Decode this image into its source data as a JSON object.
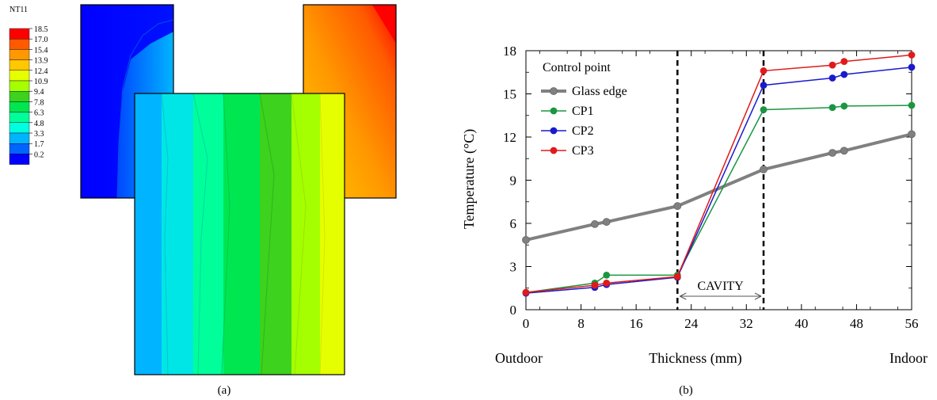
{
  "panel_a": {
    "caption": "(a)",
    "legend": {
      "title": "NT11",
      "levels": [
        "18.5",
        "17.0",
        "15.4",
        "13.9",
        "12.4",
        "10.9",
        "9.4",
        "7.8",
        "6.3",
        "4.8",
        "3.3",
        "1.7",
        "0.2"
      ],
      "colors": [
        "#ff0000",
        "#ff5a00",
        "#ff9900",
        "#ffc800",
        "#e6ff00",
        "#a5ff00",
        "#3cd21e",
        "#00e650",
        "#00ff9b",
        "#00ffe1",
        "#00b4ff",
        "#0064ff",
        "#0000ff"
      ]
    }
  },
  "panel_b": {
    "caption": "(b)"
  },
  "chart_data": {
    "type": "line",
    "xlabel": "Thickness (mm)",
    "ylabel": "Temperature (°C)",
    "xlim": [
      0,
      56
    ],
    "ylim": [
      0,
      18
    ],
    "xticks": [
      0,
      8,
      16,
      24,
      32,
      40,
      48,
      56
    ],
    "yticks": [
      0,
      3,
      6,
      9,
      12,
      15,
      18
    ],
    "x_end_labels": {
      "left": "Outdoor",
      "right": "Indoor"
    },
    "legend_title": "Control point",
    "legend_position": "top-left",
    "cavity": {
      "label": "CAVITY",
      "x_start": 22,
      "x_end": 34.5
    },
    "series": [
      {
        "name": "Glass edge",
        "color": "#808080",
        "x": [
          0,
          10,
          11.7,
          22,
          34.5,
          44.5,
          46.2,
          56
        ],
        "y": [
          4.85,
          5.95,
          6.1,
          7.2,
          9.75,
          10.9,
          11.05,
          12.2
        ]
      },
      {
        "name": "CP1",
        "color": "#1a9641",
        "x": [
          0,
          10,
          11.7,
          22,
          34.5,
          44.5,
          46.2,
          56
        ],
        "y": [
          1.2,
          1.85,
          2.4,
          2.4,
          13.9,
          14.05,
          14.15,
          14.2
        ]
      },
      {
        "name": "CP2",
        "color": "#1a1acc",
        "x": [
          0,
          10,
          11.7,
          22,
          34.5,
          44.5,
          46.2,
          56
        ],
        "y": [
          1.15,
          1.55,
          1.75,
          2.25,
          15.6,
          16.1,
          16.35,
          16.85
        ]
      },
      {
        "name": "CP3",
        "color": "#e01a1a",
        "x": [
          0,
          10,
          11.7,
          22,
          34.5,
          44.5,
          46.2,
          56
        ],
        "y": [
          1.2,
          1.7,
          1.85,
          2.3,
          16.6,
          17.0,
          17.25,
          17.7
        ]
      }
    ]
  }
}
